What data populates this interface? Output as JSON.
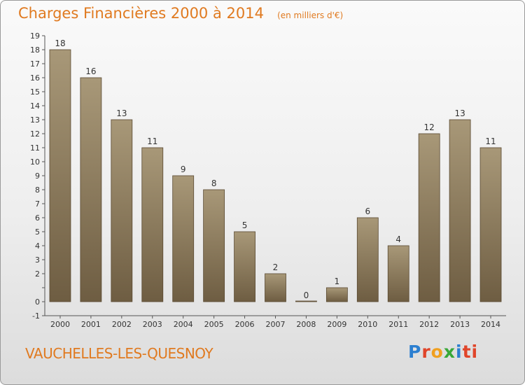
{
  "header": {
    "title": "Charges Financières 2000 à 2014",
    "unit": "(en milliers d'€)"
  },
  "footer": {
    "town": "VAUCHELLES-LES-QUESNOY",
    "logo_text": "Proxiti"
  },
  "colors": {
    "title": "#e07a20",
    "bar_top": "#a89878",
    "bar_bottom": "#6e5d42"
  },
  "chart_data": {
    "type": "bar",
    "title": "Charges Financières 2000 à 2014",
    "subtitle": "(en milliers d'€)",
    "xlabel": "",
    "ylabel": "",
    "categories": [
      "2000",
      "2001",
      "2002",
      "2003",
      "2004",
      "2005",
      "2006",
      "2007",
      "2008",
      "2009",
      "2010",
      "2011",
      "2012",
      "2013",
      "2014"
    ],
    "values": [
      18,
      16,
      13,
      11,
      9,
      8,
      5,
      2,
      0,
      1,
      6,
      4,
      12,
      13,
      11
    ],
    "ylim": [
      -1,
      19
    ],
    "yticks": [
      -1,
      0,
      1,
      2,
      3,
      4,
      5,
      6,
      7,
      8,
      9,
      10,
      11,
      12,
      13,
      14,
      15,
      16,
      17,
      18,
      19
    ],
    "ytick_labels": [
      "-1",
      "0",
      "",
      "2",
      "3",
      "4",
      "5",
      "6",
      "7",
      "8",
      "9",
      "10",
      "11",
      "12",
      "13",
      "14",
      "15",
      "16",
      "17",
      "18",
      "19"
    ],
    "grid": false,
    "legend": "none"
  }
}
